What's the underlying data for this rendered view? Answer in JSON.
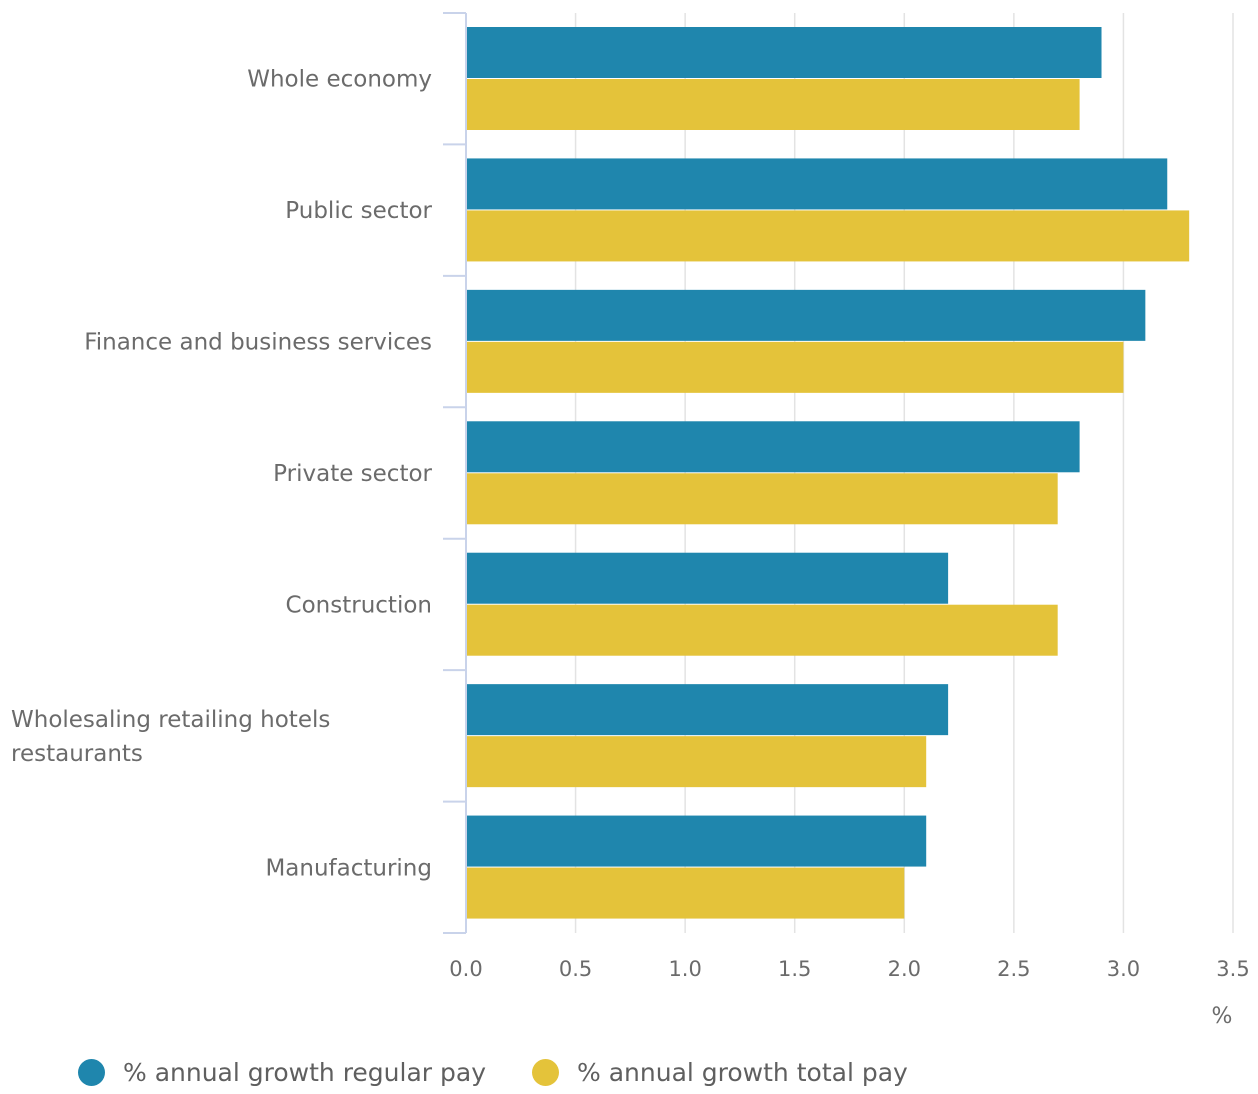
{
  "colors": {
    "regular": "#1f86ad",
    "total": "#e4c33a",
    "grid": "#e3e3e3",
    "axis": "#c9d3ea"
  },
  "chart_data": {
    "type": "bar",
    "orientation": "horizontal",
    "categories": [
      "Whole economy",
      "Public sector",
      "Finance and business services",
      "Private sector",
      "Construction",
      "Wholesaling retailing hotels restaurants",
      "Manufacturing"
    ],
    "series": [
      {
        "name": "% annual growth regular pay",
        "values": [
          2.9,
          3.2,
          3.1,
          2.8,
          2.2,
          2.2,
          2.1
        ]
      },
      {
        "name": "% annual growth total pay",
        "values": [
          2.8,
          3.3,
          3.0,
          2.7,
          2.7,
          2.1,
          2.0
        ]
      }
    ],
    "xlim": [
      0,
      3.5
    ],
    "xticks": [
      "0.0",
      "0.5",
      "1.0",
      "1.5",
      "2.0",
      "2.5",
      "3.0",
      "3.5"
    ],
    "xunit": "%",
    "grid": true,
    "legend_position": "bottom"
  },
  "legend": {
    "items": [
      "% annual growth regular pay",
      "% annual growth total pay"
    ]
  }
}
